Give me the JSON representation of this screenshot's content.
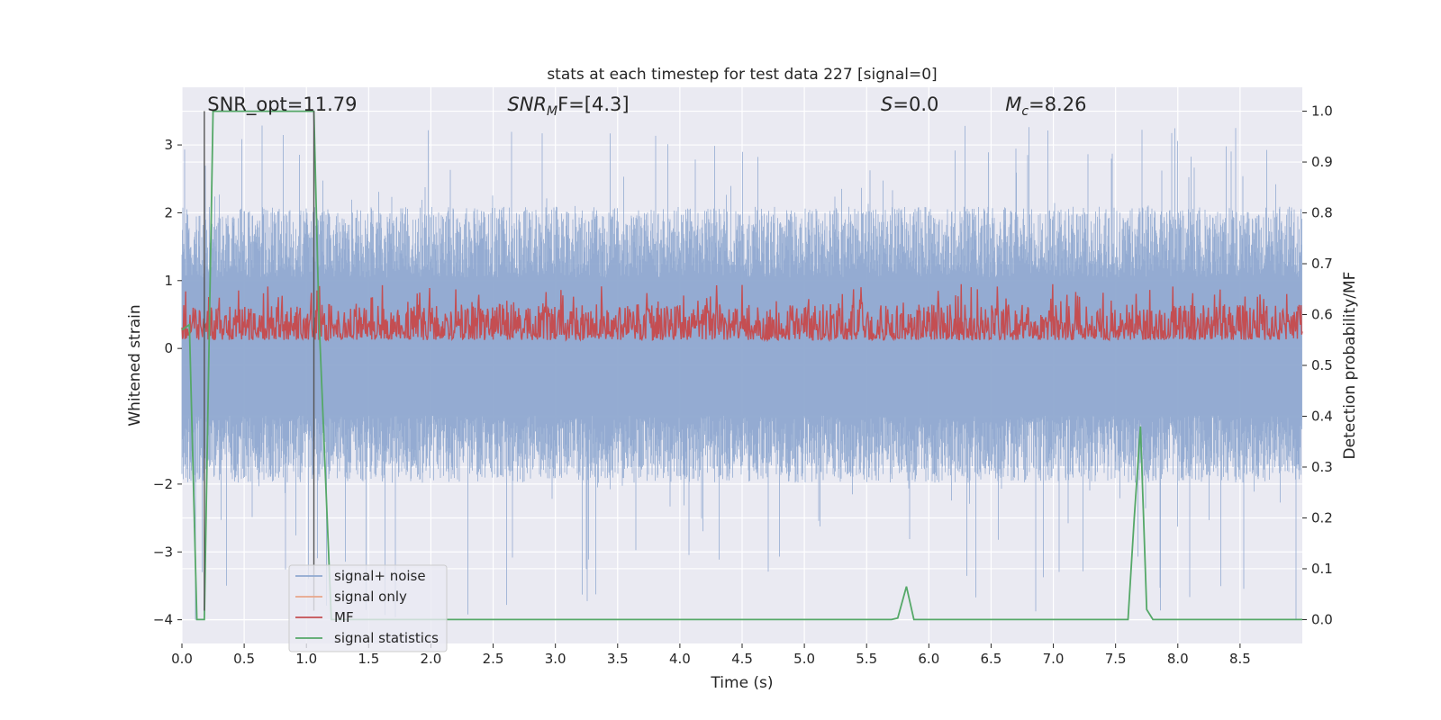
{
  "chart_data": {
    "type": "line",
    "title": "stats at each timestep for test data 227 [signal=0]",
    "xlabel": "Time (s)",
    "ylabel": "Whitened strain",
    "ylabel_right": "Detection probability/MF",
    "xlim": [
      0.0,
      9.0
    ],
    "ylim": [
      -4.35,
      3.85
    ],
    "ylim_right": [
      -0.047,
      1.047
    ],
    "x_ticks": [
      "0.0",
      "0.5",
      "1.0",
      "1.5",
      "2.0",
      "2.5",
      "3.0",
      "3.5",
      "4.0",
      "4.5",
      "5.0",
      "5.5",
      "6.0",
      "6.5",
      "7.0",
      "7.5",
      "8.0",
      "8.5"
    ],
    "y_ticks": [
      "3",
      "2",
      "1",
      "0",
      "−2",
      "−3",
      "−4"
    ],
    "y_right_ticks": [
      "1.0",
      "0.9",
      "0.8",
      "0.7",
      "0.6",
      "0.5",
      "0.4",
      "0.3",
      "0.2",
      "0.1",
      "0.0"
    ],
    "grid": true,
    "legend_position": "lower-left",
    "annotations": [
      {
        "text": "SNR_opt=11.79",
        "x": 0.19
      },
      {
        "text_main": "SNR",
        "text_sub": "M",
        "text_rest": "F=[4.3]",
        "x": 2.6
      },
      {
        "text_main": "S",
        "text_rest": "=0.0",
        "x": 5.6
      },
      {
        "text_main": "M",
        "text_sub": "c",
        "text_rest": "=8.26",
        "x": 6.6
      }
    ],
    "series": [
      {
        "name": "signal+ noise",
        "color": "#8fa8d0",
        "axis": "left",
        "description_values": {
          "typical_min": -1.8,
          "typical_max": 1.9,
          "peak_max": 3.3,
          "peak_min": -4.0
        }
      },
      {
        "name": "signal only",
        "color": "#e8a68a",
        "axis": "left",
        "values": []
      },
      {
        "name": "MF",
        "color": "#c44e52",
        "axis": "right",
        "description_values": {
          "typical_min": 0.55,
          "typical_max": 0.62,
          "peak_max": 0.66
        }
      },
      {
        "name": "signal statistics",
        "color": "#55a868",
        "axis": "right",
        "x": [
          0.0,
          0.06,
          0.12,
          0.18,
          0.25,
          0.3,
          0.5,
          0.8,
          1.0,
          1.06,
          1.1,
          1.2,
          5.7,
          5.75,
          5.82,
          5.88,
          7.6,
          7.65,
          7.7,
          7.75,
          7.8,
          9.0
        ],
        "y": [
          0.57,
          0.58,
          0.0,
          0.0,
          1.0,
          1.0,
          1.0,
          1.0,
          1.0,
          1.0,
          0.6,
          0.0,
          0.0,
          0.003,
          0.065,
          0.0,
          0.0,
          0.2,
          0.38,
          0.02,
          0.0,
          0.0
        ]
      },
      {
        "name": "",
        "color": "#555555",
        "axis": "right",
        "role": "marker-lines",
        "x": [
          0.18,
          1.06
        ],
        "y": [
          0.0,
          1.0
        ]
      }
    ]
  },
  "legend": {
    "items": [
      {
        "label": "signal+ noise",
        "color": "#8fa8d0"
      },
      {
        "label": "signal only",
        "color": "#e8a68a"
      },
      {
        "label": "MF",
        "color": "#c44e52"
      },
      {
        "label": "signal statistics",
        "color": "#55a868"
      }
    ]
  },
  "style": {
    "background": "#eaeaf2",
    "grid_color": "#ffffff"
  }
}
